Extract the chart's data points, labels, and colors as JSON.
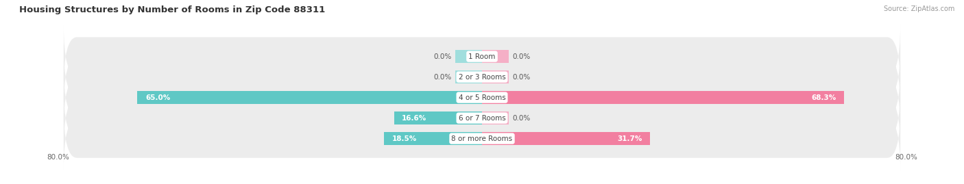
{
  "title": "Housing Structures by Number of Rooms in Zip Code 88311",
  "source": "Source: ZipAtlas.com",
  "categories": [
    "1 Room",
    "2 or 3 Rooms",
    "4 or 5 Rooms",
    "6 or 7 Rooms",
    "8 or more Rooms"
  ],
  "owner_values": [
    0.0,
    0.0,
    65.0,
    16.6,
    18.5
  ],
  "renter_values": [
    0.0,
    0.0,
    68.3,
    0.0,
    31.7
  ],
  "owner_color": "#5fc8c5",
  "renter_color": "#f27fa0",
  "owner_stub_color": "#a0dedd",
  "renter_stub_color": "#f5afc6",
  "row_bg_color": "#ececec",
  "x_min": -80.0,
  "x_max": 80.0,
  "bar_height": 0.62,
  "stub_size": 5.0,
  "title_fontsize": 9.5,
  "value_fontsize": 7.5,
  "category_fontsize": 7.5,
  "source_fontsize": 7,
  "legend_fontsize": 7.5
}
